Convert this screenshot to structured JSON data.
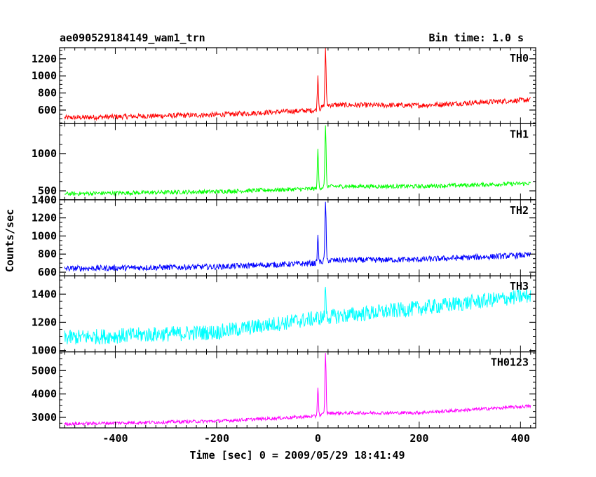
{
  "header": {
    "title": "ae090529184149_wam1_trn",
    "bin_time": "Bin time: 1.0 s"
  },
  "chart_data": {
    "type": "line",
    "xlabel": "Time [sec] 0 = 2009/05/29 18:41:49",
    "ylabel": "Counts/sec",
    "xlim": [
      -510,
      430
    ],
    "xticks": [
      -400,
      -200,
      0,
      200,
      400
    ],
    "bin_time_s": 1.0,
    "panels": [
      {
        "name": "TH0",
        "color": "#ff0000",
        "ylim": [
          440,
          1330
        ],
        "yticks": [
          600,
          800,
          1000,
          1200
        ],
        "baseline": [
          [
            -500,
            510
          ],
          [
            -200,
            545
          ],
          [
            0,
            600
          ],
          [
            15,
            660
          ],
          [
            200,
            655
          ],
          [
            420,
            720
          ]
        ],
        "noise": 30,
        "peaks": [
          {
            "x": 0,
            "y": 1000
          },
          {
            "x": 15,
            "y": 1330
          }
        ]
      },
      {
        "name": "TH1",
        "color": "#00ff00",
        "ylim": [
          380,
          1400
        ],
        "yticks": [
          500,
          1000
        ],
        "baseline": [
          [
            -500,
            460
          ],
          [
            -200,
            490
          ],
          [
            0,
            530
          ],
          [
            15,
            560
          ],
          [
            200,
            560
          ],
          [
            420,
            600
          ]
        ],
        "noise": 28,
        "peaks": [
          {
            "x": 0,
            "y": 1050
          },
          {
            "x": 15,
            "y": 1400
          }
        ]
      },
      {
        "name": "TH2",
        "color": "#0000ff",
        "ylim": [
          560,
          1400
        ],
        "yticks": [
          600,
          800,
          1000,
          1200,
          1400
        ],
        "baseline": [
          [
            -500,
            640
          ],
          [
            -200,
            660
          ],
          [
            0,
            700
          ],
          [
            15,
            730
          ],
          [
            200,
            740
          ],
          [
            420,
            790
          ]
        ],
        "noise": 32,
        "peaks": [
          {
            "x": 0,
            "y": 990
          },
          {
            "x": 15,
            "y": 1400
          }
        ]
      },
      {
        "name": "TH3",
        "color": "#00ffff",
        "ylim": [
          990,
          1530
        ],
        "yticks": [
          1000,
          1200,
          1400
        ],
        "baseline": [
          [
            -500,
            1090
          ],
          [
            -200,
            1130
          ],
          [
            0,
            1230
          ],
          [
            200,
            1300
          ],
          [
            420,
            1390
          ]
        ],
        "noise": 55,
        "peaks": [
          {
            "x": 15,
            "y": 1450
          }
        ]
      },
      {
        "name": "TH0123",
        "color": "#ff00ff",
        "ylim": [
          2550,
          5800
        ],
        "yticks": [
          3000,
          4000,
          5000
        ],
        "baseline": [
          [
            -500,
            2720
          ],
          [
            -200,
            2840
          ],
          [
            0,
            3050
          ],
          [
            15,
            3180
          ],
          [
            200,
            3200
          ],
          [
            420,
            3480
          ]
        ],
        "noise": 70,
        "peaks": [
          {
            "x": 0,
            "y": 4300
          },
          {
            "x": 15,
            "y": 5800
          }
        ]
      }
    ]
  }
}
